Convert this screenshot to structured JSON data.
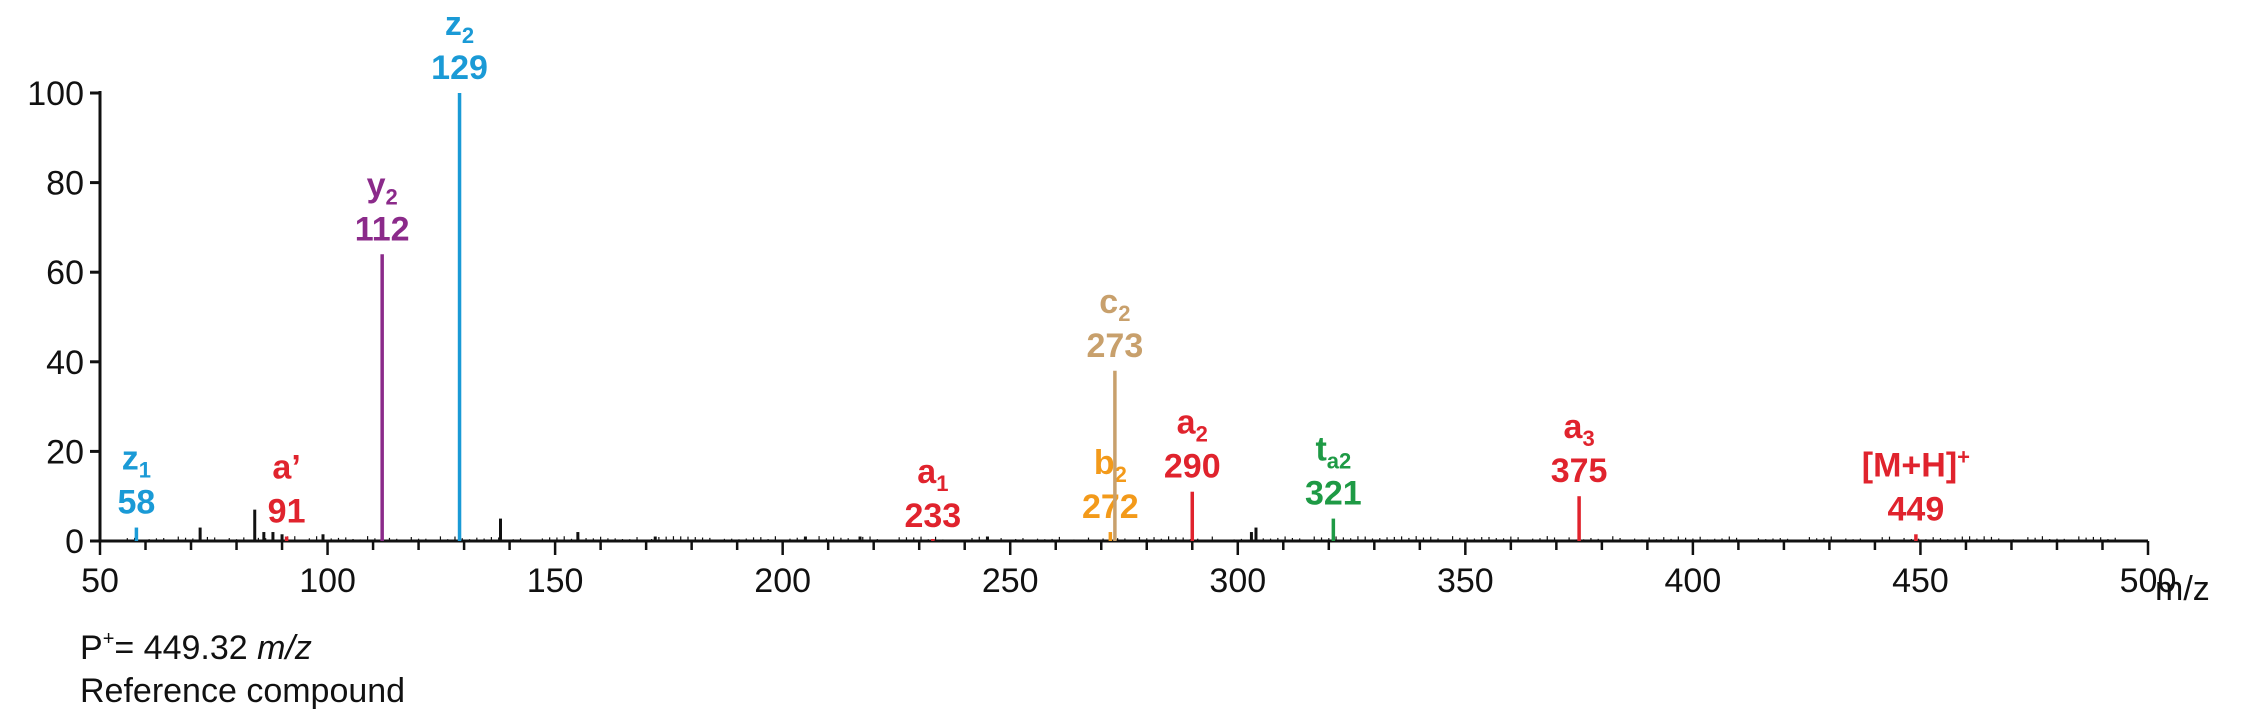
{
  "chart_data": {
    "type": "bar",
    "xlim": [
      50,
      500
    ],
    "ylim": [
      0,
      100
    ],
    "x_ticks": [
      "50",
      "100",
      "150",
      "200",
      "250",
      "300",
      "350",
      "400",
      "450",
      "500"
    ],
    "y_ticks": [
      "0",
      "20",
      "40",
      "60",
      "80",
      "100"
    ],
    "x_unit": "m/z",
    "labeled_peaks": [
      {
        "x": 58,
        "y": 3,
        "name": "z",
        "sub": "1",
        "sup": "",
        "value": "58",
        "color": "#1a9ad6"
      },
      {
        "x": 91,
        "y": 1,
        "name": "a’",
        "sub": "",
        "sup": "",
        "value": "91",
        "color": "#e0232d"
      },
      {
        "x": 112,
        "y": 64,
        "name": "y",
        "sub": "2",
        "sup": "",
        "value": "112",
        "color": "#8b2a8a"
      },
      {
        "x": 129,
        "y": 100,
        "name": "z",
        "sub": "2",
        "sup": "",
        "value": "129",
        "color": "#1a9ad6"
      },
      {
        "x": 233,
        "y": 0,
        "name": "a",
        "sub": "1",
        "sup": "",
        "value": "233",
        "color": "#e0232d"
      },
      {
        "x": 272,
        "y": 2,
        "name": "b",
        "sub": "2",
        "sup": "",
        "value": "272",
        "color": "#f39a1a"
      },
      {
        "x": 273,
        "y": 38,
        "name": "c",
        "sub": "2",
        "sup": "",
        "value": "273",
        "color": "#c8a06c"
      },
      {
        "x": 290,
        "y": 11,
        "name": "a",
        "sub": "2",
        "sup": "",
        "value": "290",
        "color": "#e0232d"
      },
      {
        "x": 321,
        "y": 5,
        "name": "t",
        "sub": "a2",
        "sup": "",
        "value": "321",
        "color": "#1e9a45"
      },
      {
        "x": 375,
        "y": 10,
        "name": "a",
        "sub": "3",
        "sup": "",
        "value": "375",
        "color": "#e0232d"
      },
      {
        "x": 449,
        "y": 1.5,
        "name": "[M+H]",
        "sub": "",
        "sup": "+",
        "value": "449",
        "color": "#e0232d"
      }
    ],
    "minor_peaks": [
      {
        "x": 72,
        "y": 3
      },
      {
        "x": 84,
        "y": 7
      },
      {
        "x": 86,
        "y": 2
      },
      {
        "x": 88,
        "y": 2
      },
      {
        "x": 90,
        "y": 1.5
      },
      {
        "x": 99,
        "y": 1.5
      },
      {
        "x": 138,
        "y": 5
      },
      {
        "x": 155,
        "y": 2
      },
      {
        "x": 172,
        "y": 1
      },
      {
        "x": 205,
        "y": 1
      },
      {
        "x": 217,
        "y": 1
      },
      {
        "x": 245,
        "y": 1
      },
      {
        "x": 303,
        "y": 2
      },
      {
        "x": 304,
        "y": 3
      }
    ]
  },
  "caption": {
    "ion_prefix": "P",
    "ion_sup": "+",
    "ion_value": "= 449.32 ",
    "ion_unit": "m/z",
    "compound": "Reference compound"
  }
}
